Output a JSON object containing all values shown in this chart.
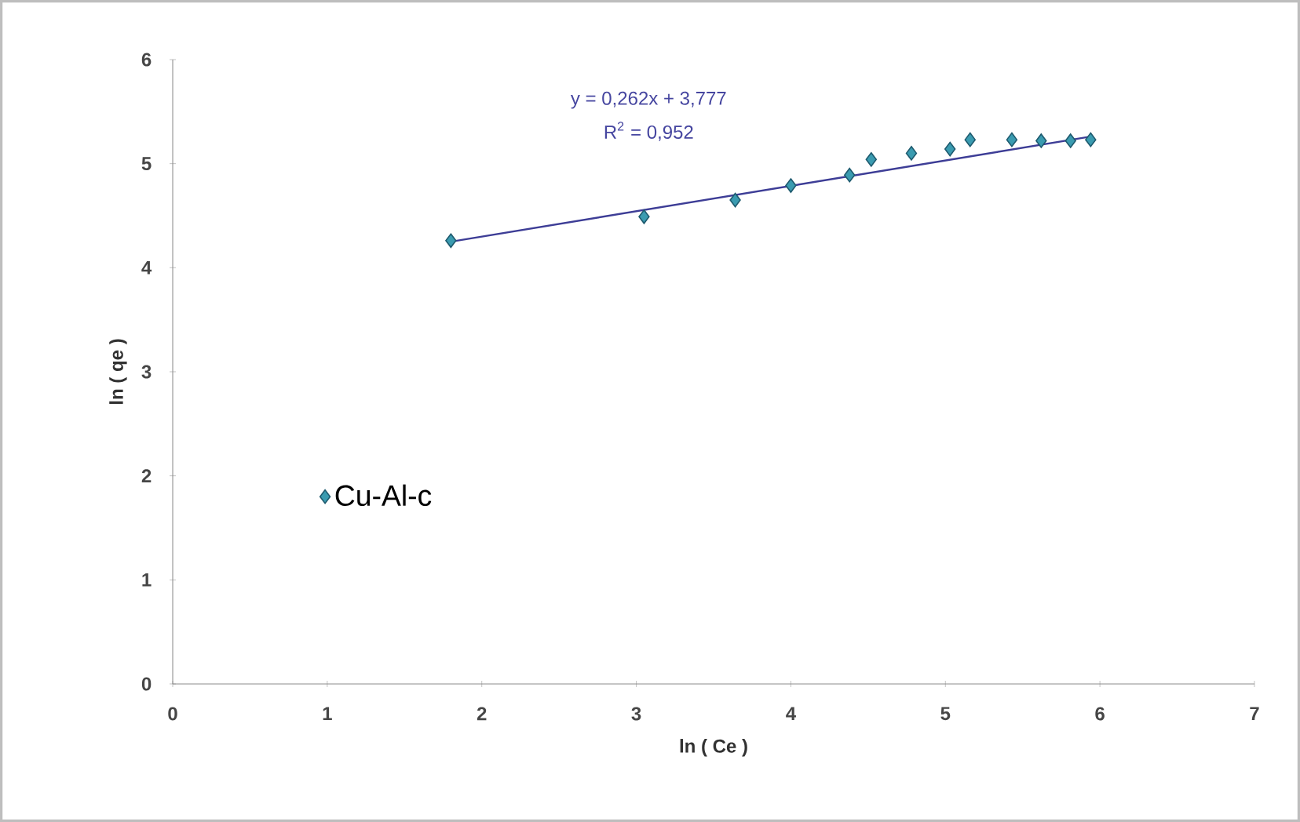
{
  "chart_data": {
    "type": "scatter",
    "xlabel": "ln ( Ce )",
    "ylabel": "ln ( qe )",
    "xlim": [
      0,
      7
    ],
    "ylim": [
      0,
      6
    ],
    "xticks": [
      0,
      1,
      2,
      3,
      4,
      5,
      6,
      7
    ],
    "yticks": [
      0,
      1,
      2,
      3,
      4,
      5,
      6
    ],
    "legend": "left",
    "grid": false,
    "annotations": [
      "y = 0,262x + 3,777",
      "R$^{2}$ = 0,952"
    ],
    "series": [
      {
        "name": "Cu-Al-c",
        "marker": "diamond",
        "color": "#3a9bb0",
        "x": [
          1.8,
          3.05,
          3.64,
          4.0,
          4.38,
          4.52,
          4.78,
          5.03,
          5.16,
          5.43,
          5.62,
          5.81,
          5.94
        ],
        "values": [
          4.26,
          4.49,
          4.65,
          4.79,
          4.89,
          5.04,
          5.1,
          5.14,
          5.23,
          5.23,
          5.22,
          5.22,
          5.23
        ]
      },
      {
        "type": "line",
        "marker": "none",
        "color": "#3d3d96",
        "x": [
          1.8,
          5.94
        ],
        "values": [
          4.25,
          5.26
        ]
      }
    ]
  }
}
